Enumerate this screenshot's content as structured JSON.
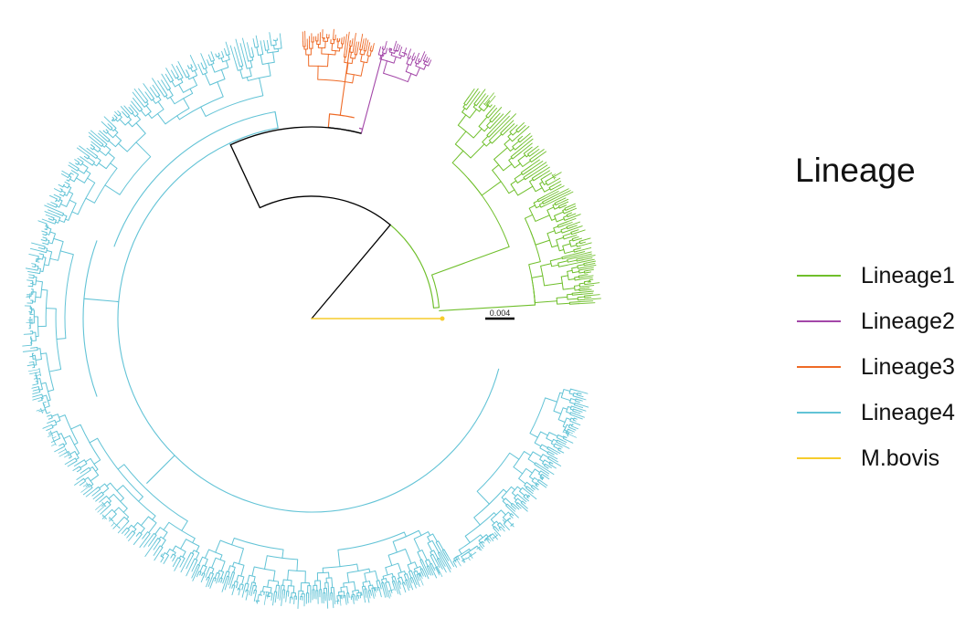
{
  "legend": {
    "title": "Lineage",
    "items": [
      {
        "label": "Lineage1",
        "color": "#6fbf2b"
      },
      {
        "label": "Lineage2",
        "color": "#a347a8"
      },
      {
        "label": "Lineage3",
        "color": "#ee6a26"
      },
      {
        "label": "Lineage4",
        "color": "#62c3d6"
      },
      {
        "label": "M.bovis",
        "color": "#f6cc2c"
      }
    ]
  },
  "scale_bar": {
    "label": "0.004"
  },
  "backbone_color": "#000000"
}
